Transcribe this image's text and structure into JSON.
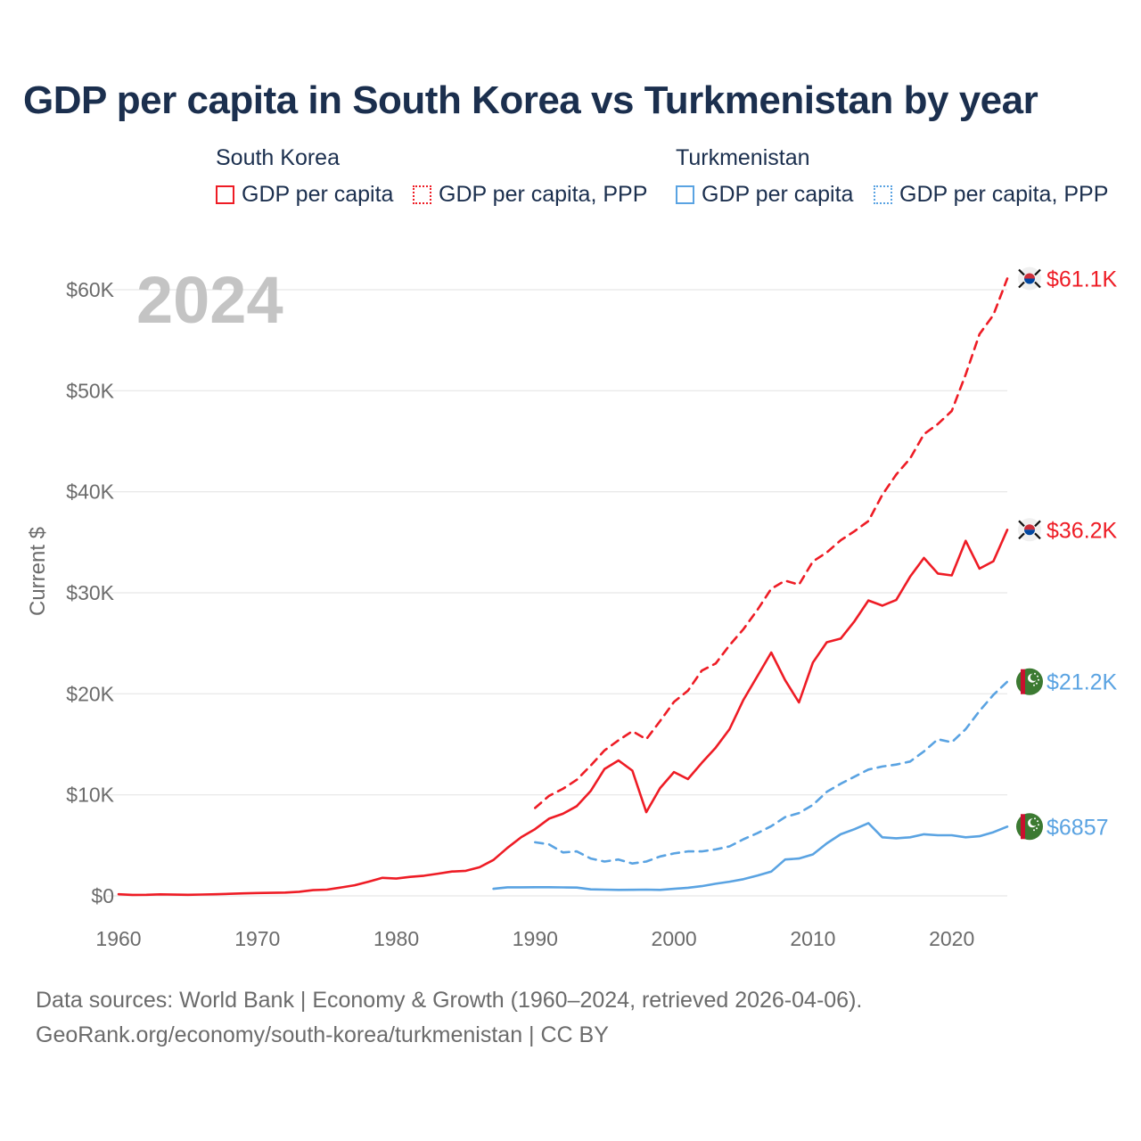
{
  "title": "GDP per capita in South Korea vs Turkmenistan by year",
  "legend": {
    "groups": [
      {
        "name": "South Korea",
        "items": [
          "GDP per capita",
          "GDP per capita, PPP"
        ]
      },
      {
        "name": "Turkmenistan",
        "items": [
          "GDP per capita",
          "GDP per capita, PPP"
        ]
      }
    ]
  },
  "footer": {
    "sources": "Data sources: World Bank | Economy & Growth (1960–2024, retrieved 2026-04-06).",
    "link": "GeoRank.org/economy/south-korea/turkmenistan | CC BY"
  },
  "colors": {
    "south_korea": "#ee1c25",
    "turkmenistan": "#5aa3e2",
    "grid": "#e6e6e6",
    "axis_text": "#6b6b6b",
    "year_watermark": "#c4c4c4"
  },
  "chart_data": {
    "type": "line",
    "title": "GDP per capita in South Korea vs Turkmenistan by year",
    "xlabel": "",
    "ylabel": "Current $",
    "xlim": [
      1960,
      2024
    ],
    "ylim": [
      0,
      60000
    ],
    "x_ticks": [
      1960,
      1970,
      1980,
      1990,
      2000,
      2010,
      2020
    ],
    "y_ticks": [
      0,
      10000,
      20000,
      30000,
      40000,
      50000,
      60000
    ],
    "y_tick_labels": [
      "$0",
      "$10K",
      "$20K",
      "$30K",
      "$40K",
      "$50K",
      "$60K"
    ],
    "year_label": "2024",
    "grid": true,
    "series": [
      {
        "name": "South Korea GDP per capita",
        "country": "South Korea",
        "color": "#ee1c25",
        "style": "solid",
        "end_label": "$36.2K",
        "x": [
          1960,
          1961,
          1962,
          1963,
          1964,
          1965,
          1966,
          1967,
          1968,
          1969,
          1970,
          1971,
          1972,
          1973,
          1974,
          1975,
          1976,
          1977,
          1978,
          1979,
          1980,
          1981,
          1982,
          1983,
          1984,
          1985,
          1986,
          1987,
          1988,
          1989,
          1990,
          1991,
          1992,
          1993,
          1994,
          1995,
          1996,
          1997,
          1998,
          1999,
          2000,
          2001,
          2002,
          2003,
          2004,
          2005,
          2006,
          2007,
          2008,
          2009,
          2010,
          2011,
          2012,
          2013,
          2014,
          2015,
          2016,
          2017,
          2018,
          2019,
          2020,
          2021,
          2022,
          2023,
          2024
        ],
        "values": [
          158,
          94,
          106,
          146,
          124,
          109,
          133,
          161,
          199,
          243,
          279,
          300,
          323,
          406,
          563,
          616,
          830,
          1052,
          1406,
          1783,
          1715,
          1883,
          1992,
          2199,
          2413,
          2482,
          2835,
          3555,
          4749,
          5817,
          6610,
          7637,
          8127,
          8885,
          10385,
          12564,
          13403,
          12398,
          8282,
          10672,
          12257,
          11561,
          13165,
          14673,
          16497,
          19403,
          21744,
          24087,
          21345,
          19144,
          23087,
          25100,
          25467,
          27183,
          29242,
          28732,
          29288,
          31601,
          33447,
          31902,
          31721,
          35142,
          32395,
          33121,
          36238
        ]
      },
      {
        "name": "South Korea GDP per capita, PPP",
        "country": "South Korea",
        "color": "#ee1c25",
        "style": "dashed",
        "end_label": "$61.1K",
        "x": [
          1990,
          1991,
          1992,
          1993,
          1994,
          1995,
          1996,
          1997,
          1998,
          1999,
          2000,
          2001,
          2002,
          2003,
          2004,
          2005,
          2006,
          2007,
          2008,
          2009,
          2010,
          2011,
          2012,
          2013,
          2014,
          2015,
          2016,
          2017,
          2018,
          2019,
          2020,
          2021,
          2022,
          2023,
          2024
        ],
        "values": [
          8700,
          9900,
          10600,
          11500,
          12900,
          14400,
          15400,
          16300,
          15500,
          17300,
          19200,
          20300,
          22300,
          23000,
          24800,
          26400,
          28300,
          30400,
          31200,
          30800,
          33100,
          34000,
          35200,
          36100,
          37100,
          39700,
          41700,
          43300,
          45700,
          46700,
          48000,
          51600,
          55600,
          57500,
          61100
        ]
      },
      {
        "name": "Turkmenistan GDP per capita",
        "country": "Turkmenistan",
        "color": "#5aa3e2",
        "style": "solid",
        "end_label": "$6857",
        "x": [
          1987,
          1988,
          1989,
          1990,
          1991,
          1992,
          1993,
          1994,
          1995,
          1996,
          1997,
          1998,
          1999,
          2000,
          2001,
          2002,
          2003,
          2004,
          2005,
          2006,
          2007,
          2008,
          2009,
          2010,
          2011,
          2012,
          2013,
          2014,
          2015,
          2016,
          2017,
          2018,
          2019,
          2020,
          2021,
          2022,
          2023,
          2024
        ],
        "values": [
          700,
          850,
          850,
          860,
          860,
          840,
          820,
          640,
          620,
          590,
          600,
          620,
          590,
          700,
          800,
          960,
          1200,
          1400,
          1650,
          2000,
          2400,
          3600,
          3700,
          4100,
          5200,
          6100,
          6600,
          7200,
          5800,
          5700,
          5800,
          6100,
          6000,
          6000,
          5800,
          5900,
          6300,
          6857
        ]
      },
      {
        "name": "Turkmenistan GDP per capita, PPP",
        "country": "Turkmenistan",
        "color": "#5aa3e2",
        "style": "dashed",
        "end_label": "$21.2K",
        "x": [
          1990,
          1991,
          1992,
          1993,
          1994,
          1995,
          1996,
          1997,
          1998,
          1999,
          2000,
          2001,
          2002,
          2003,
          2004,
          2005,
          2006,
          2007,
          2008,
          2009,
          2010,
          2011,
          2012,
          2013,
          2014,
          2015,
          2016,
          2017,
          2018,
          2019,
          2020,
          2021,
          2022,
          2023,
          2024
        ],
        "values": [
          5300,
          5100,
          4300,
          4400,
          3700,
          3400,
          3600,
          3200,
          3400,
          3900,
          4200,
          4400,
          4400,
          4600,
          4900,
          5600,
          6200,
          6900,
          7800,
          8200,
          9000,
          10300,
          11100,
          11800,
          12500,
          12800,
          13000,
          13300,
          14300,
          15500,
          15200,
          16500,
          18300,
          19900,
          21200
        ]
      }
    ]
  }
}
